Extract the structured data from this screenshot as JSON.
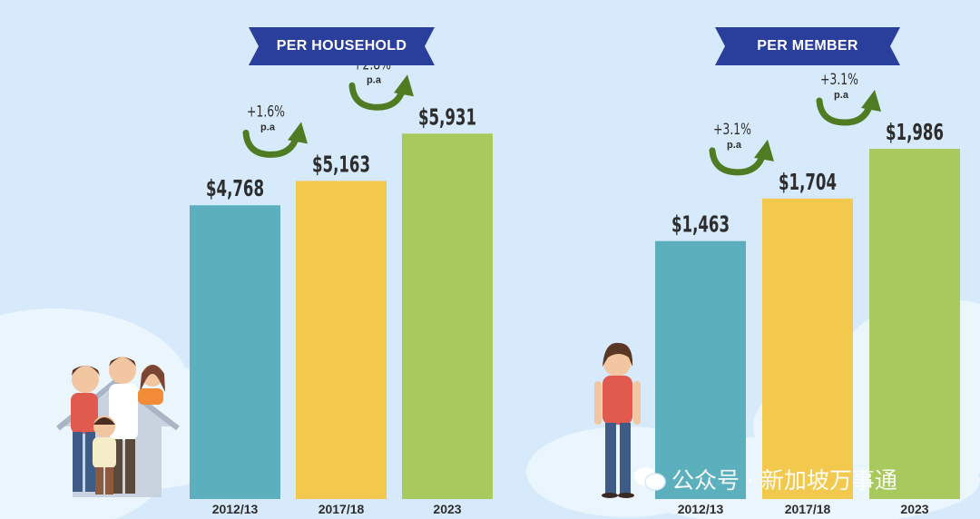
{
  "colors": {
    "background": "#d6eafb",
    "banner": "#2a3f9c",
    "bar_2012": "#5cafbc",
    "bar_2017": "#f2c94c",
    "bar_2023": "#a8c95e",
    "growth_arrow": "#4f7c23",
    "value_text": "#2d2d2d"
  },
  "banners": {
    "household": "PER HOUSEHOLD",
    "member": "PER MEMBER"
  },
  "watermark": "公众号 · 新加坡万事通",
  "chart_data": [
    {
      "type": "bar",
      "title": "PER HOUSEHOLD",
      "categories": [
        "2012/13",
        "2017/18",
        "2023"
      ],
      "values": [
        4768,
        5163,
        5931
      ],
      "value_labels": [
        "$4,768",
        "$5,163",
        "$5,931"
      ],
      "growth": [
        {
          "from": "2012/13",
          "to": "2017/18",
          "rate": "+1.6%",
          "unit": "p.a"
        },
        {
          "from": "2017/18",
          "to": "2023",
          "rate": "+2.8%",
          "unit": "p.a"
        }
      ],
      "ylim": [
        0,
        8100
      ],
      "grid": false
    },
    {
      "type": "bar",
      "title": "PER MEMBER",
      "categories": [
        "2012/13",
        "2017/18",
        "2023"
      ],
      "values": [
        1463,
        1704,
        1986
      ],
      "value_labels": [
        "$1,463",
        "$1,704",
        "$1,986"
      ],
      "growth": [
        {
          "from": "2012/13",
          "to": "2017/18",
          "rate": "+3.1%",
          "unit": "p.a"
        },
        {
          "from": "2017/18",
          "to": "2023",
          "rate": "+3.1%",
          "unit": "p.a"
        }
      ],
      "ylim": [
        0,
        2830
      ],
      "grid": false
    }
  ]
}
